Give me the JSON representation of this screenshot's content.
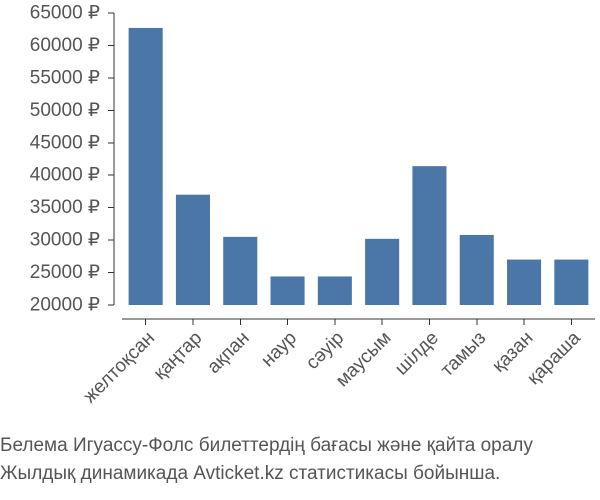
{
  "chart_data": {
    "type": "bar",
    "title": "",
    "xlabel": "",
    "ylabel": "",
    "categories": [
      "желтоқсан",
      "қаңтар",
      "ақпан",
      "наур",
      "сәуір",
      "маусым",
      "шілде",
      "тамыз",
      "қазан",
      "қараша"
    ],
    "values": [
      62700,
      37000,
      30500,
      24400,
      24400,
      30200,
      41400,
      30800,
      27000,
      27000
    ],
    "ylim": [
      20000,
      65000
    ],
    "yticks": [
      20000,
      25000,
      30000,
      35000,
      40000,
      45000,
      50000,
      55000,
      60000,
      65000
    ],
    "ytick_labels": [
      "20000 ₽",
      "25000 ₽",
      "30000 ₽",
      "35000 ₽",
      "40000 ₽",
      "45000 ₽",
      "50000 ₽",
      "55000 ₽",
      "60000 ₽",
      "65000 ₽"
    ],
    "grid": false,
    "bar_color": "#4a76a8"
  },
  "caption": {
    "line1": "Белема Игуассу-Фолс билеттердің бағасы және қайта оралу",
    "line2": "Жылдық динамикада Avticket.kz статистикасы бойынша."
  }
}
